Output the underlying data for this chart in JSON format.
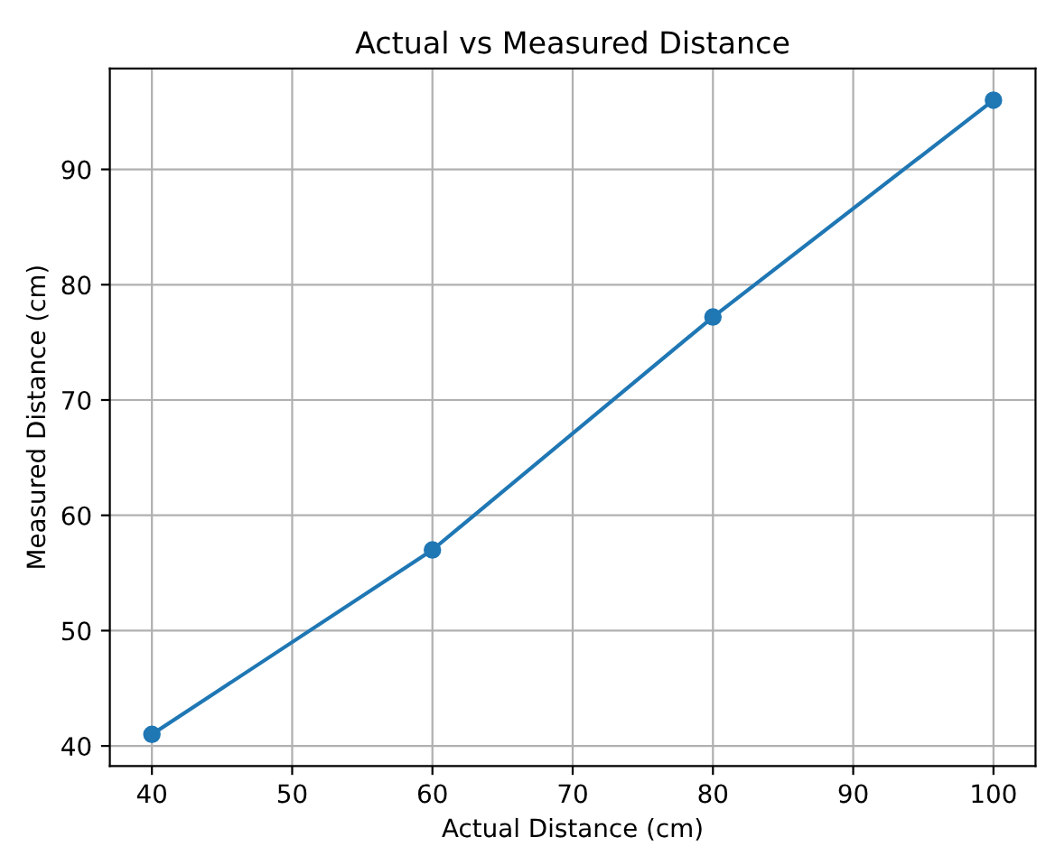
{
  "chart_data": {
    "type": "line",
    "title": "Actual vs Measured Distance",
    "xlabel": "Actual Distance (cm)",
    "ylabel": "Measured Distance (cm)",
    "x": [
      40,
      60,
      80,
      100
    ],
    "series": [
      {
        "color": "#1f77b4",
        "values": [
          41,
          57,
          77.2,
          96
        ]
      }
    ],
    "xlim": [
      37,
      103
    ],
    "ylim": [
      38.25,
      98.75
    ],
    "xticks": [
      40,
      50,
      60,
      70,
      80,
      90,
      100
    ],
    "yticks": [
      40,
      50,
      60,
      70,
      80,
      90
    ],
    "grid": true,
    "marker": "circle",
    "line_style": "solid"
  }
}
